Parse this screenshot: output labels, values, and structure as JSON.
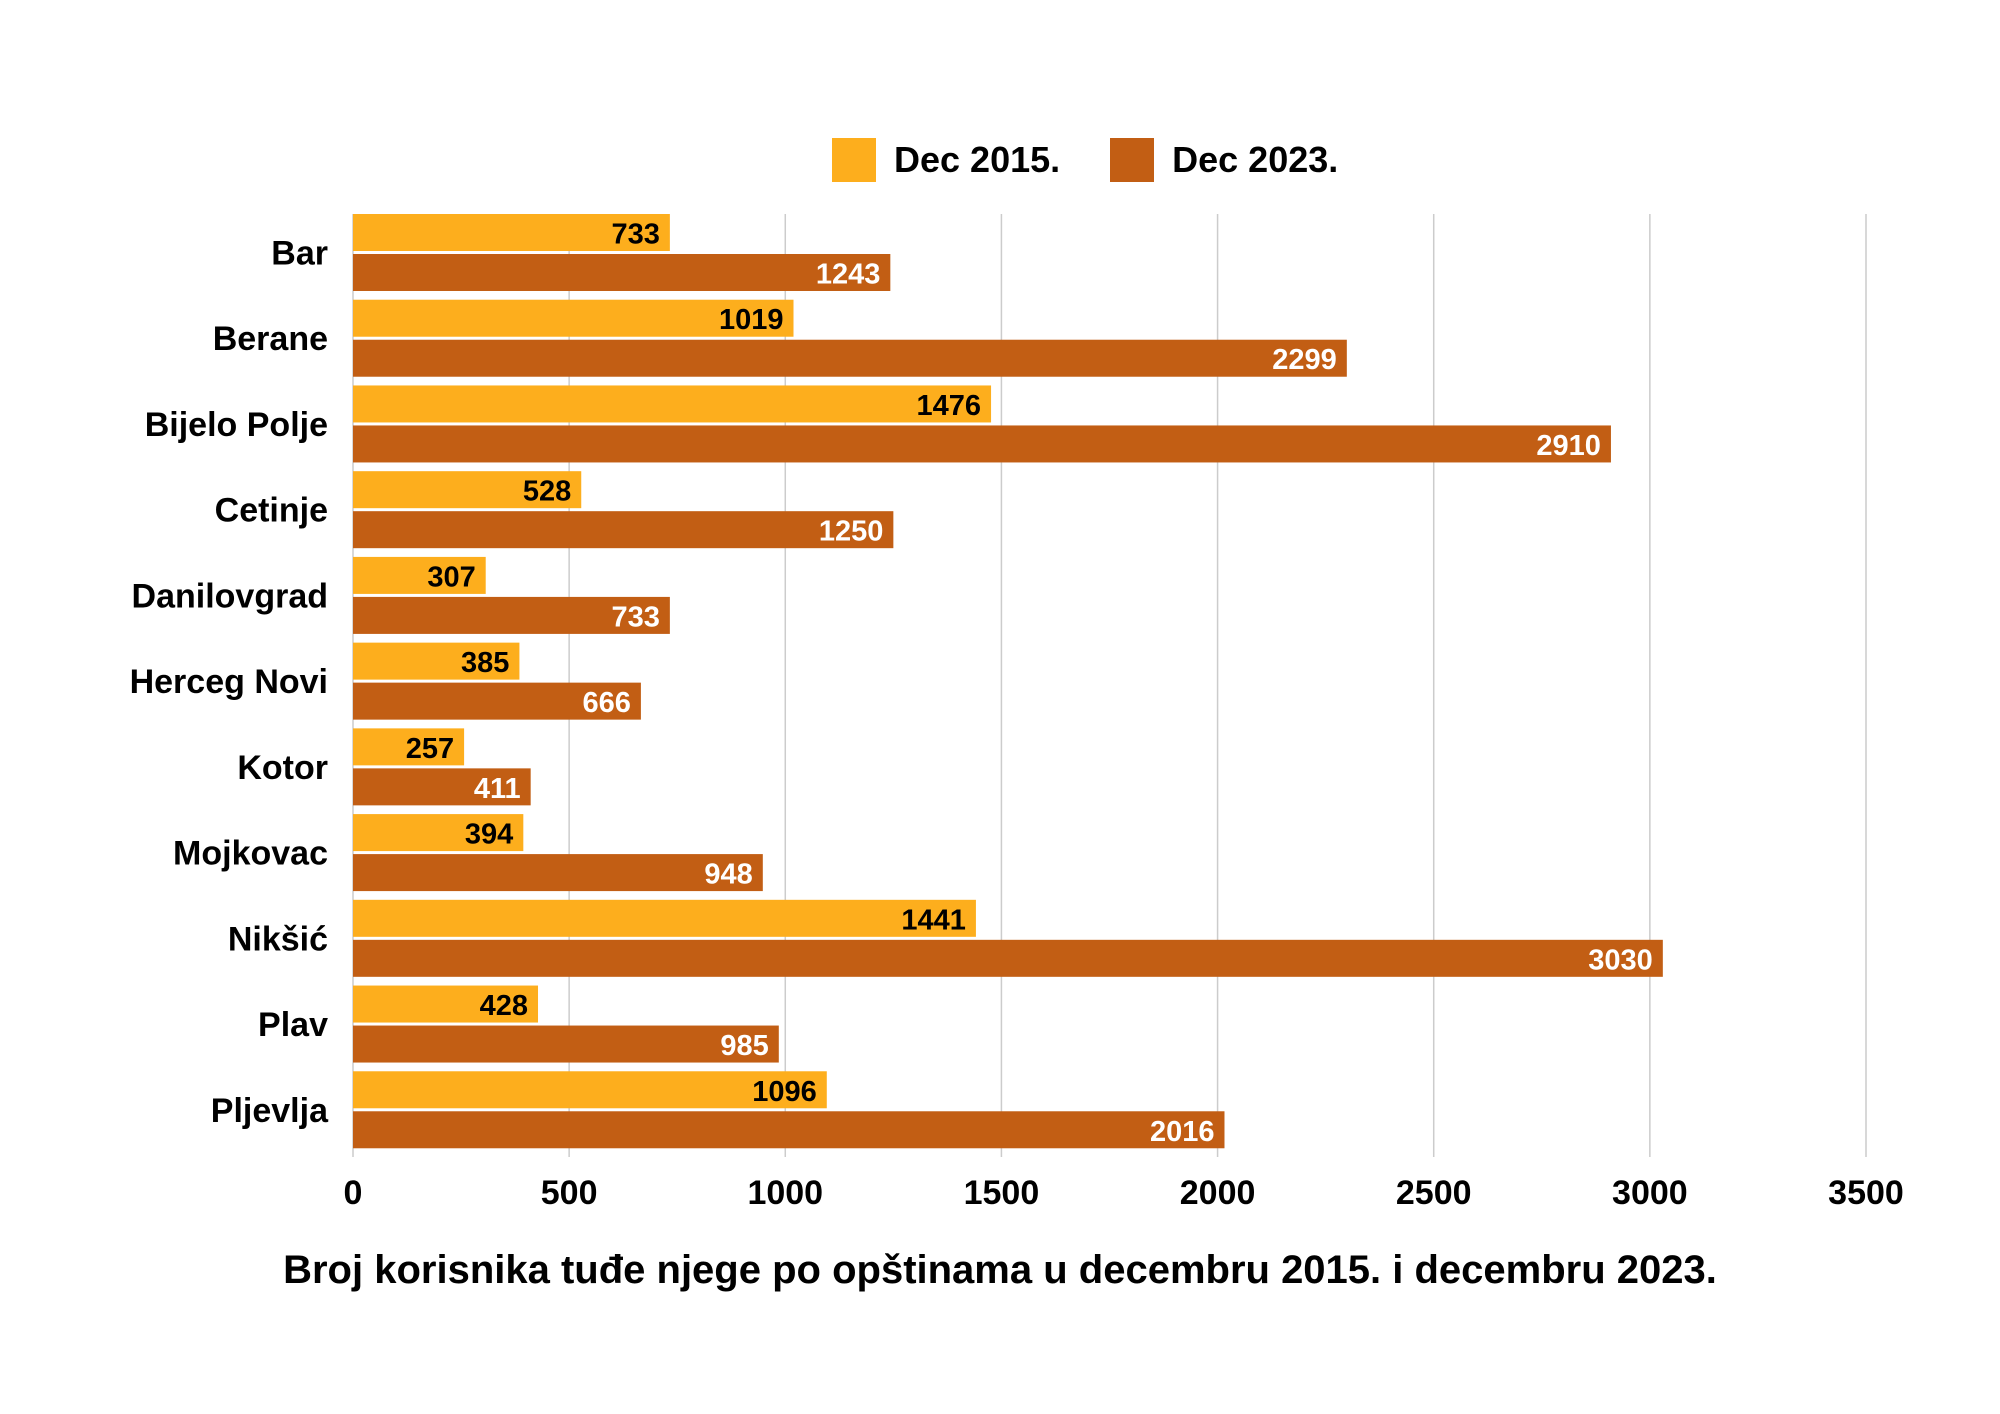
{
  "chart_data": {
    "type": "bar",
    "orientation": "horizontal",
    "title": "Broj korisnika tuđe njege po opštinama u decembru 2015. i decembru 2023.",
    "xlabel": "",
    "ylabel": "",
    "xlim": [
      0,
      3500
    ],
    "xticks": [
      0,
      500,
      1000,
      1500,
      2000,
      2500,
      3000,
      3500
    ],
    "grid": "vertical",
    "legend": "top",
    "categories": [
      "Bar",
      "Berane",
      "Bijelo Polje",
      "Cetinje",
      "Danilovgrad",
      "Herceg Novi",
      "Kotor",
      "Mojkovac",
      "Nikšić",
      "Plav",
      "Pljevlja"
    ],
    "series": [
      {
        "name": "Dec 2015.",
        "color": "#FDAE1D",
        "label_color": "#000000",
        "values": [
          733,
          1019,
          1476,
          528,
          307,
          385,
          257,
          394,
          1441,
          428,
          1096
        ]
      },
      {
        "name": "Dec 2023.",
        "color": "#C25E14",
        "label_color": "#FFFFFF",
        "values": [
          1243,
          2299,
          2910,
          1250,
          733,
          666,
          411,
          948,
          3030,
          985,
          2016
        ]
      }
    ]
  }
}
